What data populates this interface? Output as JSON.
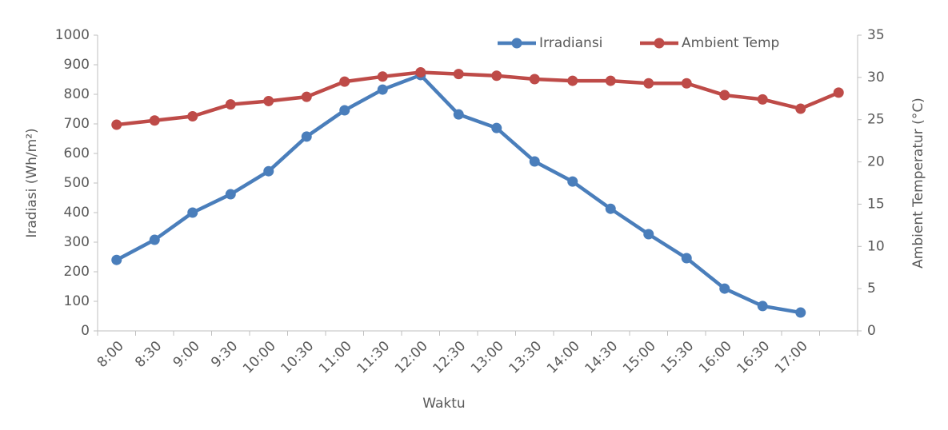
{
  "chart_data": {
    "type": "line",
    "x_label": "Waktu",
    "y_label": "Iradiasi (Wh/m²)",
    "y2_label": "Ambient Temperatur  (°C)",
    "categories": [
      "8:00",
      "8:30",
      "9:00",
      "9:30",
      "10:00",
      "10:30",
      "11:00",
      "11:30",
      "12:00",
      "12:30",
      "13:00",
      "13:30",
      "14:00",
      "14:30",
      "15:00",
      "15:30",
      "16:00",
      "16:30",
      "17:00",
      null
    ],
    "series": [
      {
        "name": "Irradiansi",
        "color": "#4a7ebb",
        "values": [
          240,
          308,
          400,
          462,
          540,
          657,
          746,
          816,
          865,
          732,
          686,
          573,
          505,
          413,
          327,
          246,
          143,
          84,
          62,
          null
        ]
      },
      {
        "name": "Ambient Temp",
        "color": "#be4b48",
        "axis": "y2",
        "values": [
          24.4,
          24.9,
          25.4,
          26.8,
          27.2,
          27.7,
          29.5,
          30.1,
          30.6,
          30.4,
          30.2,
          29.8,
          29.6,
          29.6,
          29.3,
          29.3,
          27.9,
          27.4,
          26.3,
          28.2
        ]
      }
    ],
    "ylim": [
      0,
      1000
    ],
    "yticks": [
      0,
      100,
      200,
      300,
      400,
      500,
      600,
      700,
      800,
      900,
      1000
    ],
    "y2lim": [
      0,
      35
    ],
    "y2ticks": [
      0,
      5,
      10,
      15,
      20,
      25,
      30,
      35
    ],
    "legend": "top"
  }
}
